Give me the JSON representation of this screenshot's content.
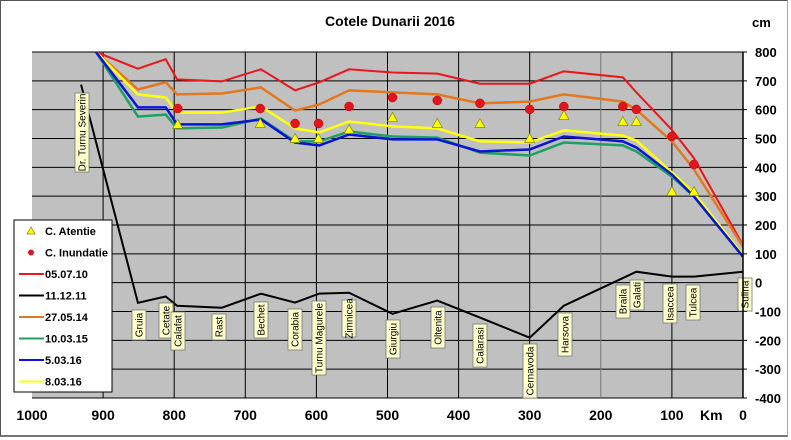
{
  "chart_data": {
    "type": "line",
    "title": "Cotele Dunarii 2016",
    "ylabel": "cm",
    "xlabel": "Km",
    "xlim": [
      1000,
      0
    ],
    "ylim": [
      -400,
      800
    ],
    "x_reversed": true,
    "grid": true,
    "legend": "left",
    "x_ticks": [
      1000,
      900,
      800,
      700,
      600,
      500,
      400,
      300,
      200,
      100,
      0
    ],
    "y_ticks": [
      800,
      700,
      600,
      500,
      400,
      300,
      200,
      100,
      0,
      -100,
      -200,
      -300,
      -400
    ],
    "stations": [
      {
        "name": "Dr. Turnu Severin",
        "km": 931
      },
      {
        "name": "Gruia",
        "km": 851
      },
      {
        "name": "Cetate",
        "km": 811
      },
      {
        "name": "Calafat",
        "km": 795
      },
      {
        "name": "Rast",
        "km": 738
      },
      {
        "name": "Bechet",
        "km": 679
      },
      {
        "name": "Corabia",
        "km": 630
      },
      {
        "name": "Turnu Magurele",
        "km": 597
      },
      {
        "name": "Zimnicea",
        "km": 554
      },
      {
        "name": "Giurgiu",
        "km": 493
      },
      {
        "name": "Oltenita",
        "km": 430
      },
      {
        "name": "Calarasi",
        "km": 370
      },
      {
        "name": "Cernavoda",
        "km": 300
      },
      {
        "name": "Harsova",
        "km": 252
      },
      {
        "name": "Braila",
        "km": 170
      },
      {
        "name": "Galati",
        "km": 150
      },
      {
        "name": "Isaccea",
        "km": 100
      },
      {
        "name": "Tulcea",
        "km": 71
      },
      {
        "name": "Sulina",
        "km": 0
      }
    ],
    "markers": [
      {
        "name": "C. Atentie",
        "color": "#ffff00",
        "km": [
          795,
          679,
          630,
          597,
          554,
          493,
          430,
          370,
          300,
          252,
          169,
          150,
          100,
          69
        ],
        "values": [
          549,
          552,
          500,
          500,
          531,
          573,
          552,
          552,
          500,
          580,
          559,
          559,
          316,
          316
        ]
      },
      {
        "name": "C. Inundatie",
        "color": "#e0161e",
        "km": [
          795,
          679,
          630,
          597,
          554,
          493,
          430,
          370,
          300,
          252,
          169,
          150,
          100,
          69
        ],
        "values": [
          604,
          604,
          552,
          552,
          611,
          642,
          632,
          622,
          601,
          611,
          611,
          601,
          507,
          410
        ]
      }
    ],
    "x": [
      910,
      851,
      812,
      796,
      733,
      678,
      630,
      596,
      554,
      493,
      430,
      370,
      300,
      252,
      169,
      150,
      100,
      69,
      0
    ],
    "series": [
      {
        "name": "05.07.10",
        "color": "#e8171b",
        "values": [
          800,
          742,
          775,
          705,
          698,
          740,
          667,
          695,
          740,
          729,
          725,
          690,
          690,
          733,
          712,
          660,
          530,
          432,
          130
        ]
      },
      {
        "name": "11.12.11",
        "color": "#000000",
        "x": [
          931,
          851,
          812,
          796,
          733,
          678,
          630,
          596,
          554,
          493,
          430,
          370,
          300,
          252,
          150,
          100,
          69,
          0
        ],
        "values": [
          687,
          -70,
          -48,
          -80,
          -87,
          -38,
          -69,
          -38,
          -35,
          -108,
          -62,
          -121,
          -191,
          -80,
          38,
          21,
          21,
          38
        ]
      },
      {
        "name": "27.05.14",
        "color": "#e2781e",
        "values": [
          800,
          670,
          695,
          653,
          656,
          677,
          597,
          618,
          667,
          660,
          653,
          622,
          628,
          653,
          628,
          600,
          490,
          393,
          125
        ]
      },
      {
        "name": "10.03.15",
        "color": "#1ea064",
        "values": [
          800,
          576,
          583,
          535,
          538,
          569,
          490,
          490,
          524,
          507,
          503,
          451,
          441,
          486,
          476,
          455,
          368,
          299,
          90
        ]
      },
      {
        "name": "5.03.16",
        "color": "#0a14d2",
        "values": [
          800,
          608,
          608,
          549,
          549,
          566,
          486,
          476,
          514,
          497,
          497,
          455,
          462,
          507,
          490,
          469,
          375,
          299,
          90
        ]
      },
      {
        "name": "8.03.16",
        "color": "#ffff14",
        "values": [
          800,
          653,
          642,
          590,
          590,
          611,
          535,
          521,
          559,
          542,
          535,
          490,
          486,
          528,
          510,
          493,
          382,
          312,
          95
        ]
      }
    ]
  }
}
